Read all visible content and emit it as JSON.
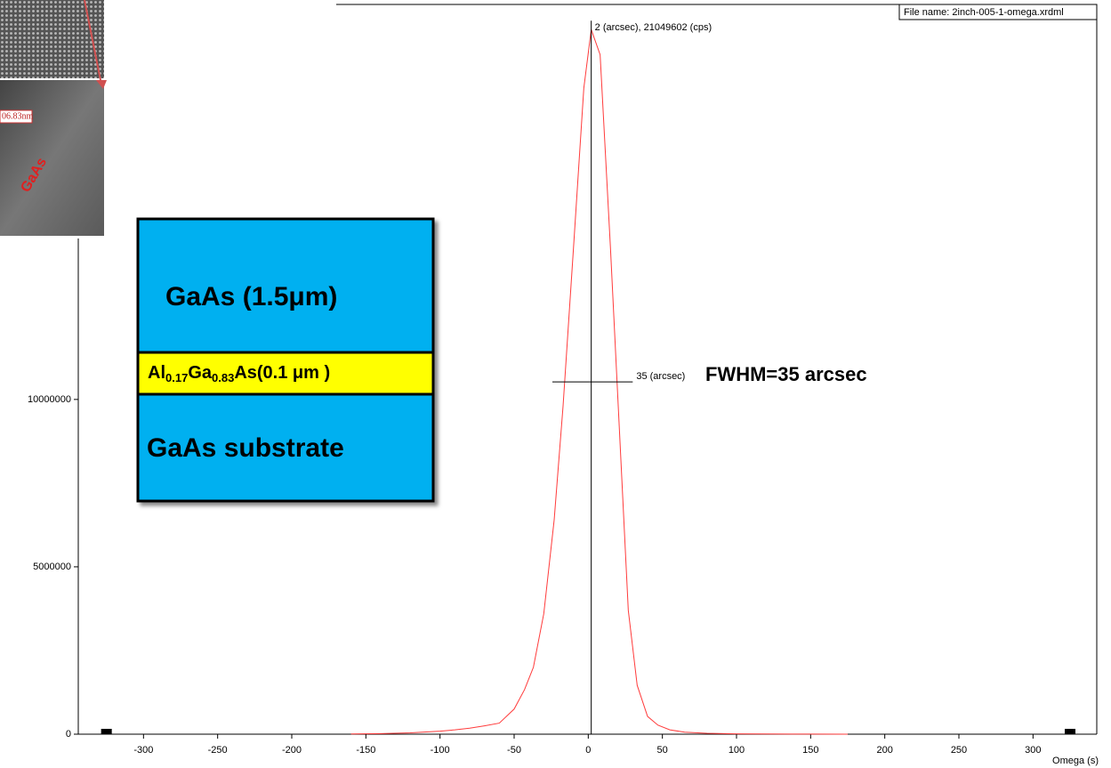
{
  "chart_data": {
    "type": "line",
    "x": [
      -160,
      -140,
      -120,
      -100,
      -90,
      -80,
      -70,
      -60,
      -50,
      -43,
      -37,
      -30,
      -23,
      -17,
      -10,
      -3,
      2,
      8,
      15,
      20,
      27,
      33,
      40,
      47,
      55,
      65,
      80,
      100,
      120,
      150,
      175
    ],
    "series": [
      {
        "name": "omega",
        "color": "#ff3b3b",
        "values": [
          5000,
          15000,
          40000,
          90000,
          130000,
          180000,
          250000,
          330000,
          750000,
          1330000,
          2000000,
          3600000,
          6400000,
          9800000,
          14500000,
          19300000,
          21049602,
          20300000,
          14500000,
          10000000,
          3700000,
          1460000,
          530000,
          270000,
          130000,
          60000,
          25000,
          10000,
          5000,
          2000,
          1000
        ]
      }
    ],
    "xlim": [
      -344,
      343
    ],
    "xticks": [
      -300,
      -250,
      -200,
      -150,
      -100,
      -50,
      0,
      50,
      100,
      150,
      200,
      250,
      300
    ],
    "ylim": [
      0,
      21800000
    ],
    "yticks": [
      0,
      5000000,
      10000000
    ],
    "x_label": "Omega (s)",
    "file_name": "File name: 2inch-005-1-omega.xrdml",
    "peak": {
      "x": 2,
      "y": 21049602,
      "label": "2 (arcsec), 21049602 (cps)"
    },
    "fwhm": {
      "x0": -17,
      "x1": 18,
      "y": 10524801,
      "label": "35 (arcsec)",
      "note": "FWHM=35 arcsec"
    },
    "range_markers": [
      -325,
      325
    ]
  },
  "structure": {
    "top": "GaAs (1.5μm)",
    "middle": [
      "Al",
      "0.17",
      "Ga",
      "0.83",
      "As(0.1 μm )"
    ],
    "bottom": "GaAs substrate"
  },
  "tem": {
    "scale_label": "06.83nm",
    "material": "GaAs"
  }
}
